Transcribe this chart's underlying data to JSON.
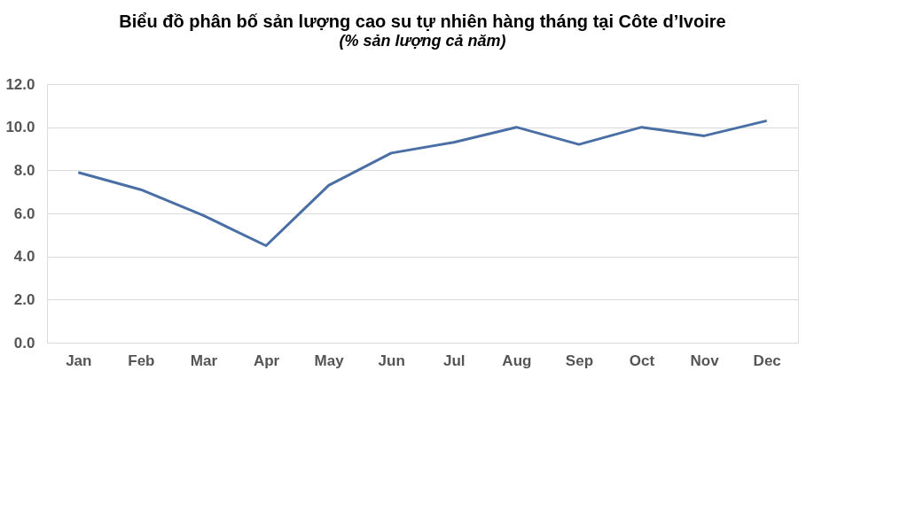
{
  "chart_data": {
    "type": "line",
    "title": "Biểu đồ phân bố sản lượng cao su tự nhiên hàng tháng tại Côte d’Ivoire",
    "subtitle": "(% sản lượng cả năm)",
    "categories": [
      "Jan",
      "Feb",
      "Mar",
      "Apr",
      "May",
      "Jun",
      "Jul",
      "Aug",
      "Sep",
      "Oct",
      "Nov",
      "Dec"
    ],
    "series": [
      {
        "color": "#4a6fa5",
        "values": [
          7.9,
          7.1,
          5.9,
          4.5,
          7.3,
          8.8,
          9.3,
          10.0,
          9.2,
          10.0,
          9.6,
          10.3
        ]
      }
    ],
    "ylim": [
      0,
      12
    ],
    "yticks": [
      {
        "value": 0,
        "label": "0.0"
      },
      {
        "value": 2,
        "label": "2.0"
      },
      {
        "value": 4,
        "label": "4.0"
      },
      {
        "value": 6,
        "label": "6.0"
      },
      {
        "value": 8,
        "label": "8.0"
      },
      {
        "value": 10,
        "label": "10.0"
      },
      {
        "value": 12,
        "label": "12.0"
      }
    ],
    "grid": "y",
    "marker": "none",
    "line_style": "solid"
  }
}
